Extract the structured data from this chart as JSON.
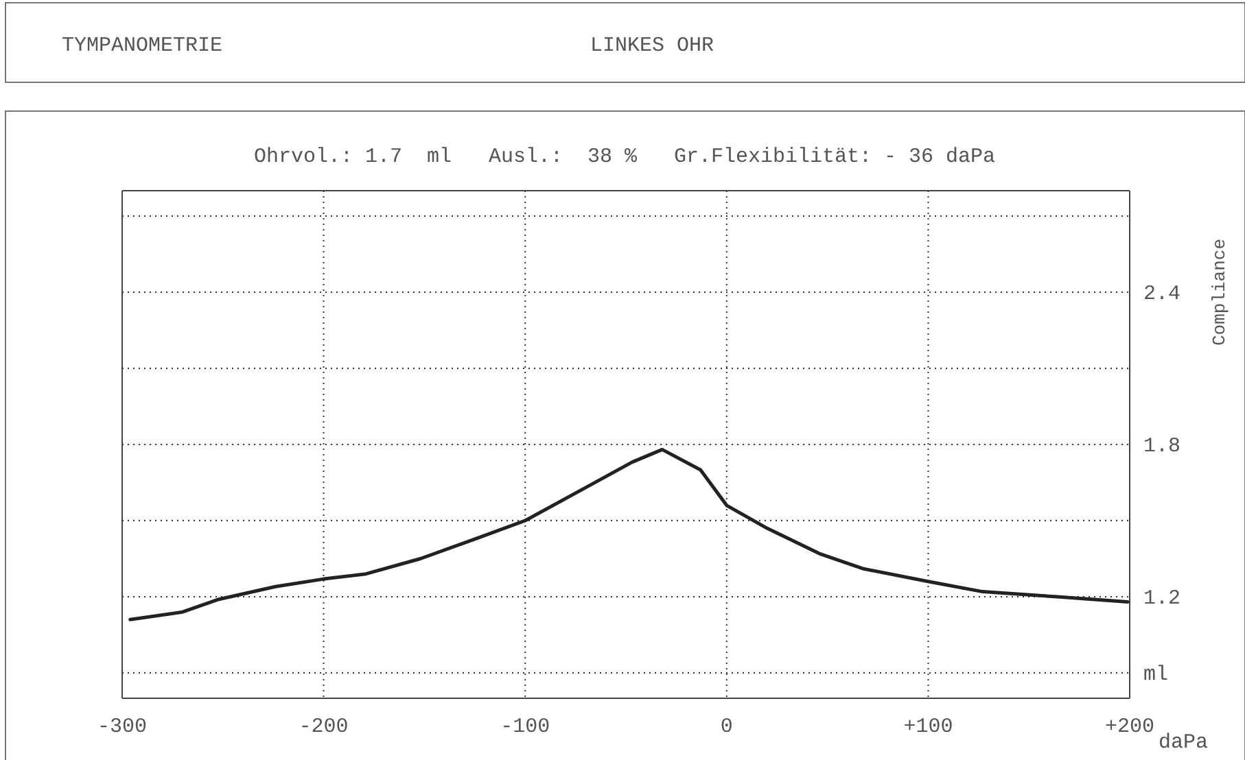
{
  "chart_data": {
    "type": "line",
    "title": "TYMPANOMETRIE",
    "subtitle": "LINKES OHR",
    "annotations": [
      "Ohrvol.: 1.7  ml   Ausl.:  38 %   Gr.Flexibilität: - 36 daPa"
    ],
    "xlabel": "daPa",
    "ylabel": "Compliance",
    "series": [
      {
        "color": "#222222",
        "x": [
          -296,
          -270,
          -252,
          -224,
          -200,
          -179,
          -152,
          -124,
          -100,
          -70,
          -47,
          -32,
          -13,
          0,
          20,
          46,
          68,
          100,
          127,
          164,
          199
        ],
        "values": [
          1.11,
          1.14,
          1.19,
          1.24,
          1.27,
          1.29,
          1.35,
          1.43,
          1.5,
          1.63,
          1.73,
          1.78,
          1.7,
          1.56,
          1.47,
          1.37,
          1.31,
          1.26,
          1.22,
          1.2,
          1.18
        ]
      }
    ],
    "xlim": [
      -300,
      200
    ],
    "xticks": [
      -300,
      -200,
      -100,
      {
        "value": 0,
        "label": "0"
      },
      {
        "value": 100,
        "label": "+100"
      },
      {
        "value": 200,
        "label": "+200"
      }
    ],
    "ylim": [
      0.8,
      2.8
    ],
    "yticks": [
      {
        "value": 0.9,
        "label": "ml"
      },
      1.2,
      {
        "value": 1.5,
        "label": null
      },
      1.8,
      {
        "value": 2.1,
        "label": null
      },
      2.4,
      {
        "value": 2.7,
        "label": null
      }
    ],
    "grid": true,
    "line_style": "solid"
  }
}
